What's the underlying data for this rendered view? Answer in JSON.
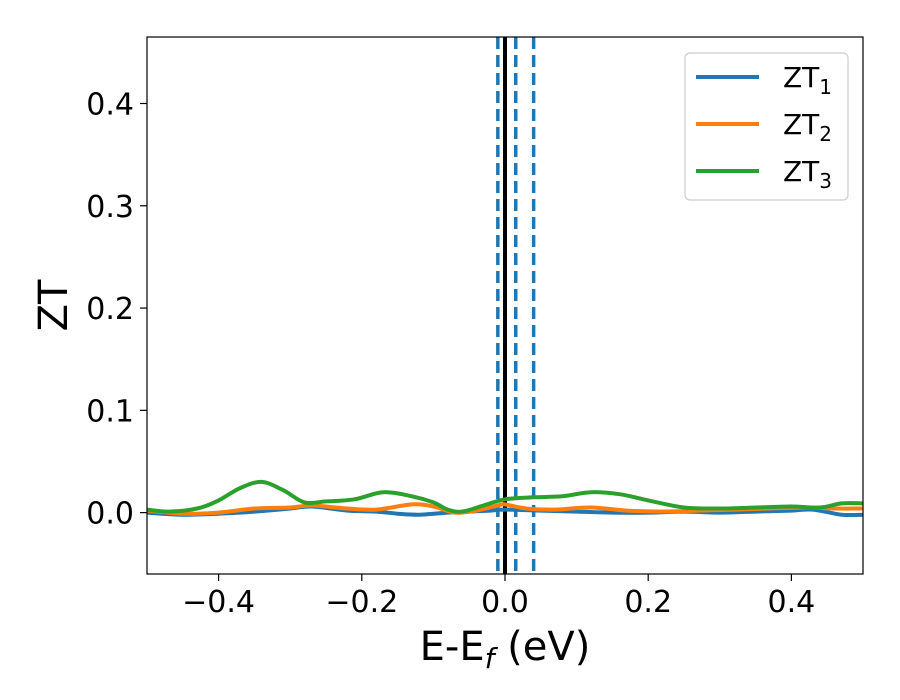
{
  "chart_data": {
    "type": "line",
    "xlabel": "E-E",
    "xlabel_sub": "f",
    "xlabel_unit": " (eV)",
    "ylabel": "ZT",
    "xlim": [
      -0.5,
      0.5
    ],
    "ylim": [
      -0.06,
      0.465
    ],
    "x_ticks": [
      -0.4,
      -0.2,
      0.0,
      0.2,
      0.4
    ],
    "x_tick_labels": [
      "−0.4",
      "−0.2",
      "0.0",
      "0.2",
      "0.4"
    ],
    "y_ticks": [
      0.0,
      0.1,
      0.2,
      0.3,
      0.4
    ],
    "y_tick_labels": [
      "0.0",
      "0.1",
      "0.2",
      "0.3",
      "0.4"
    ],
    "grid": false,
    "legend_position": "top-right",
    "vertical_lines": [
      {
        "x": 0.0,
        "style": "solid",
        "color": "#000000"
      },
      {
        "x": -0.01,
        "style": "dashed",
        "color": "#1f77b4"
      },
      {
        "x": 0.015,
        "style": "dashed",
        "color": "#1f77b4"
      },
      {
        "x": 0.04,
        "style": "dashed",
        "color": "#1f77b4"
      }
    ],
    "series": [
      {
        "name": "ZT",
        "name_sub": "1",
        "color": "#1f77b4",
        "x": [
          -0.5,
          -0.45,
          -0.4,
          -0.35,
          -0.3,
          -0.27,
          -0.22,
          -0.18,
          -0.15,
          -0.12,
          -0.08,
          -0.05,
          -0.02,
          0.0,
          0.05,
          0.1,
          0.15,
          0.2,
          0.25,
          0.3,
          0.35,
          0.4,
          0.43,
          0.47,
          0.5
        ],
        "values": [
          0.0,
          -0.002,
          -0.001,
          0.001,
          0.004,
          0.006,
          0.002,
          0.001,
          -0.001,
          -0.002,
          0.0,
          0.001,
          0.002,
          0.003,
          0.002,
          0.001,
          0.0,
          0.0,
          0.001,
          0.0,
          0.001,
          0.002,
          0.003,
          -0.002,
          -0.002
        ]
      },
      {
        "name": "ZT",
        "name_sub": "2",
        "color": "#ff7f0e",
        "x": [
          -0.5,
          -0.45,
          -0.4,
          -0.35,
          -0.3,
          -0.27,
          -0.22,
          -0.18,
          -0.13,
          -0.1,
          -0.07,
          -0.04,
          -0.01,
          0.0,
          0.03,
          0.07,
          0.12,
          0.17,
          0.22,
          0.27,
          0.32,
          0.37,
          0.42,
          0.46,
          0.5
        ],
        "values": [
          0.002,
          -0.001,
          0.0,
          0.004,
          0.005,
          0.007,
          0.004,
          0.003,
          0.008,
          0.006,
          0.0,
          0.002,
          0.007,
          0.008,
          0.004,
          0.003,
          0.005,
          0.002,
          0.001,
          0.002,
          0.003,
          0.004,
          0.005,
          0.004,
          0.004
        ]
      },
      {
        "name": "ZT",
        "name_sub": "3",
        "color": "#2ca02c",
        "x": [
          -0.5,
          -0.47,
          -0.43,
          -0.4,
          -0.37,
          -0.34,
          -0.31,
          -0.28,
          -0.25,
          -0.21,
          -0.17,
          -0.13,
          -0.1,
          -0.08,
          -0.06,
          -0.03,
          0.0,
          0.04,
          0.08,
          0.12,
          0.16,
          0.2,
          0.25,
          0.3,
          0.35,
          0.4,
          0.44,
          0.47,
          0.5
        ],
        "values": [
          0.003,
          0.001,
          0.004,
          0.012,
          0.024,
          0.03,
          0.022,
          0.01,
          0.011,
          0.013,
          0.02,
          0.016,
          0.01,
          0.003,
          0.001,
          0.007,
          0.013,
          0.015,
          0.016,
          0.02,
          0.018,
          0.012,
          0.005,
          0.004,
          0.005,
          0.006,
          0.005,
          0.009,
          0.009
        ]
      }
    ]
  }
}
